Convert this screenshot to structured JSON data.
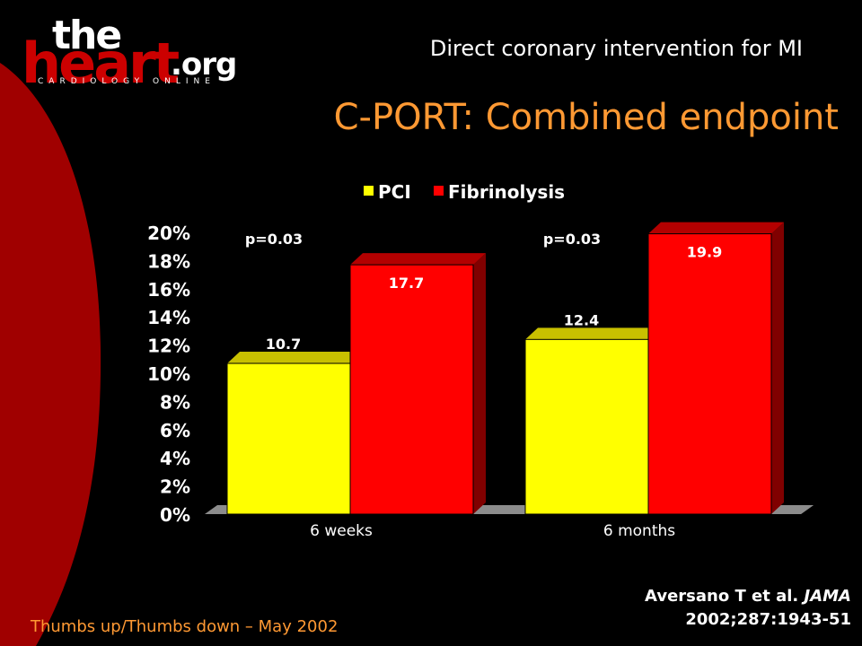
{
  "logo": {
    "the": "the",
    "heart": "heart",
    "org": ".org",
    "tagline": "CARDIOLOGY ONLINE"
  },
  "header": "Direct coronary intervention for MI",
  "title": "C-PORT: Combined endpoint",
  "footer_left": "Thumbs up/Thumbs down – May 2002",
  "citation": {
    "authors": "Aversano T et al. ",
    "journal": "JAMA",
    "ref": "2002;287:1943-51"
  },
  "colors": {
    "accent": "#ff9933",
    "brand_red": "#cc0000",
    "pci": "#ffff00",
    "fibrinolysis": "#ff0000"
  },
  "chart_data": {
    "type": "bar",
    "categories": [
      "6 weeks",
      "6 months"
    ],
    "series": [
      {
        "name": "PCI",
        "values": [
          10.7,
          12.4
        ],
        "labels": [
          "10.7",
          "12.4"
        ]
      },
      {
        "name": "Fibrinolysis",
        "values": [
          17.7,
          19.9
        ],
        "labels": [
          "17.7",
          "19.9"
        ]
      }
    ],
    "annotations": [
      "p=0.03",
      "p=0.03"
    ],
    "yticks": [
      "0%",
      "2%",
      "4%",
      "6%",
      "8%",
      "10%",
      "12%",
      "14%",
      "16%",
      "18%",
      "20%"
    ],
    "ylim": [
      0,
      20
    ],
    "legend": "top-center",
    "grid": false,
    "style": "3d"
  }
}
